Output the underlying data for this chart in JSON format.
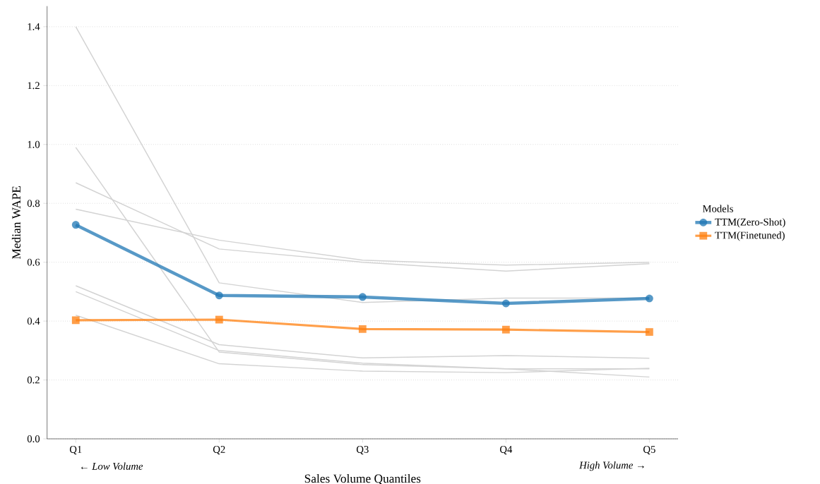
{
  "chart_data": {
    "type": "line",
    "xlabel": "Sales Volume Quantiles",
    "ylabel": "Median WAPE",
    "legend_title": "Models",
    "categories": [
      "Q1",
      "Q2",
      "Q3",
      "Q4",
      "Q5"
    ],
    "series": [
      {
        "color": "#d3d3d3",
        "values": [
          1.4,
          0.53,
          0.463,
          0.478,
          0.478
        ],
        "marker": "none"
      },
      {
        "color": "#d3d3d3",
        "values": [
          0.99,
          0.295,
          0.252,
          0.238,
          0.21
        ],
        "marker": "none"
      },
      {
        "color": "#d3d3d3",
        "values": [
          0.87,
          0.645,
          0.6,
          0.57,
          0.595
        ],
        "marker": "none"
      },
      {
        "color": "#d3d3d3",
        "values": [
          0.78,
          0.675,
          0.607,
          0.59,
          0.6
        ],
        "marker": "none"
      },
      {
        "color": "#d3d3d3",
        "values": [
          0.52,
          0.32,
          0.275,
          0.283,
          0.274
        ],
        "marker": "none"
      },
      {
        "color": "#d3d3d3",
        "values": [
          0.5,
          0.3,
          0.257,
          0.238,
          0.238
        ],
        "marker": "none"
      },
      {
        "color": "#d3d3d3",
        "values": [
          0.42,
          0.255,
          0.23,
          0.225,
          0.24
        ],
        "marker": "none"
      },
      {
        "name": "TTM(Zero-Shot)",
        "color": "#1f77b4",
        "values": [
          0.727,
          0.487,
          0.482,
          0.46,
          0.477
        ],
        "marker": "circle"
      },
      {
        "name": "TTM(Finetuned)",
        "color": "#ff7f0e",
        "values": [
          0.403,
          0.405,
          0.373,
          0.371,
          0.363
        ],
        "marker": "square"
      }
    ],
    "ylim": [
      0,
      1.47
    ],
    "yticks": [
      {
        "value": 0,
        "label": "0.0"
      },
      0.2,
      0.4,
      0.6,
      0.8,
      {
        "value": 1.0,
        "label": "1.0"
      },
      1.2,
      1.4
    ],
    "annotations": [
      "← *Low Volume*",
      "*High Volume* →"
    ],
    "grid": "y",
    "legend": "right",
    "line_style": "solid"
  }
}
